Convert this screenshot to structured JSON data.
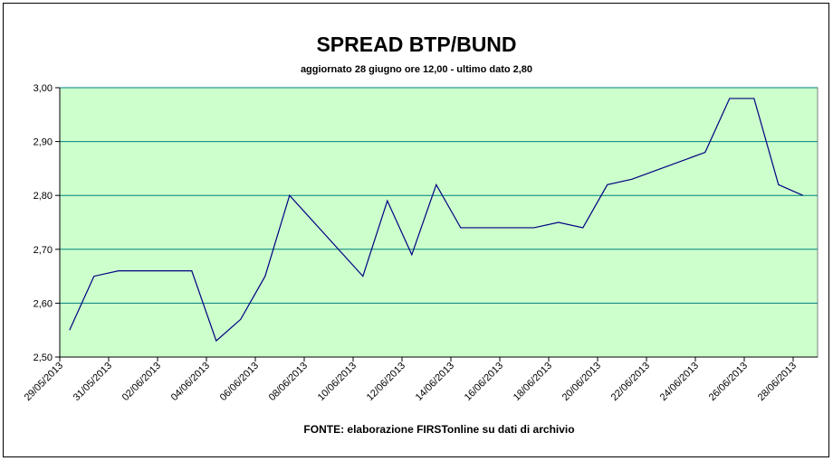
{
  "chart_data": {
    "type": "line",
    "title": "SPREAD BTP/BUND",
    "subtitle": "aggiornato 28 giugno ore 12,00  - ultimo dato 2,80",
    "source": "FONTE:  elaborazione FIRSTonline su dati di archivio",
    "x": [
      "29/05/2013",
      "30/05/2013",
      "31/05/2013",
      "03/06/2013",
      "04/06/2013",
      "05/06/2013",
      "06/06/2013",
      "07/06/2013",
      "10/06/2013",
      "11/06/2013",
      "12/06/2013",
      "13/06/2013",
      "14/06/2013",
      "17/06/2013",
      "18/06/2013",
      "19/06/2013",
      "20/06/2013",
      "21/06/2013",
      "24/06/2013",
      "25/06/2013",
      "26/06/2013",
      "27/06/2013",
      "28/06/2013"
    ],
    "series": [
      {
        "color": "#000080",
        "values": [
          2.55,
          2.65,
          2.66,
          2.66,
          2.53,
          2.57,
          2.65,
          2.8,
          2.65,
          2.79,
          2.69,
          2.82,
          2.74,
          2.74,
          2.75,
          2.74,
          2.82,
          2.83,
          2.88,
          2.98,
          2.98,
          2.82,
          2.8
        ]
      }
    ],
    "xlim": [
      "29/05/2013",
      "29/06/2013"
    ],
    "xticks": [
      "29/05/2013",
      "31/05/2013",
      "02/06/2013",
      "04/06/2013",
      "06/06/2013",
      "08/06/2013",
      "10/06/2013",
      "12/06/2013",
      "14/06/2013",
      "16/06/2013",
      "18/06/2013",
      "20/06/2013",
      "22/06/2013",
      "24/06/2013",
      "26/06/2013",
      "28/06/2013"
    ],
    "ylim": [
      2.5,
      3.0
    ],
    "yticks": [
      {
        "value": 2.5,
        "label": "2,50"
      },
      {
        "value": 2.6,
        "label": "2,60"
      },
      {
        "value": 2.7,
        "label": "2,70"
      },
      {
        "value": 2.8,
        "label": "2,80"
      },
      {
        "value": 2.9,
        "label": "2,90"
      },
      {
        "value": 3.0,
        "label": "3,00"
      }
    ],
    "grid": true,
    "plot_background": "#ccffcc",
    "grid_color": "#008080"
  }
}
